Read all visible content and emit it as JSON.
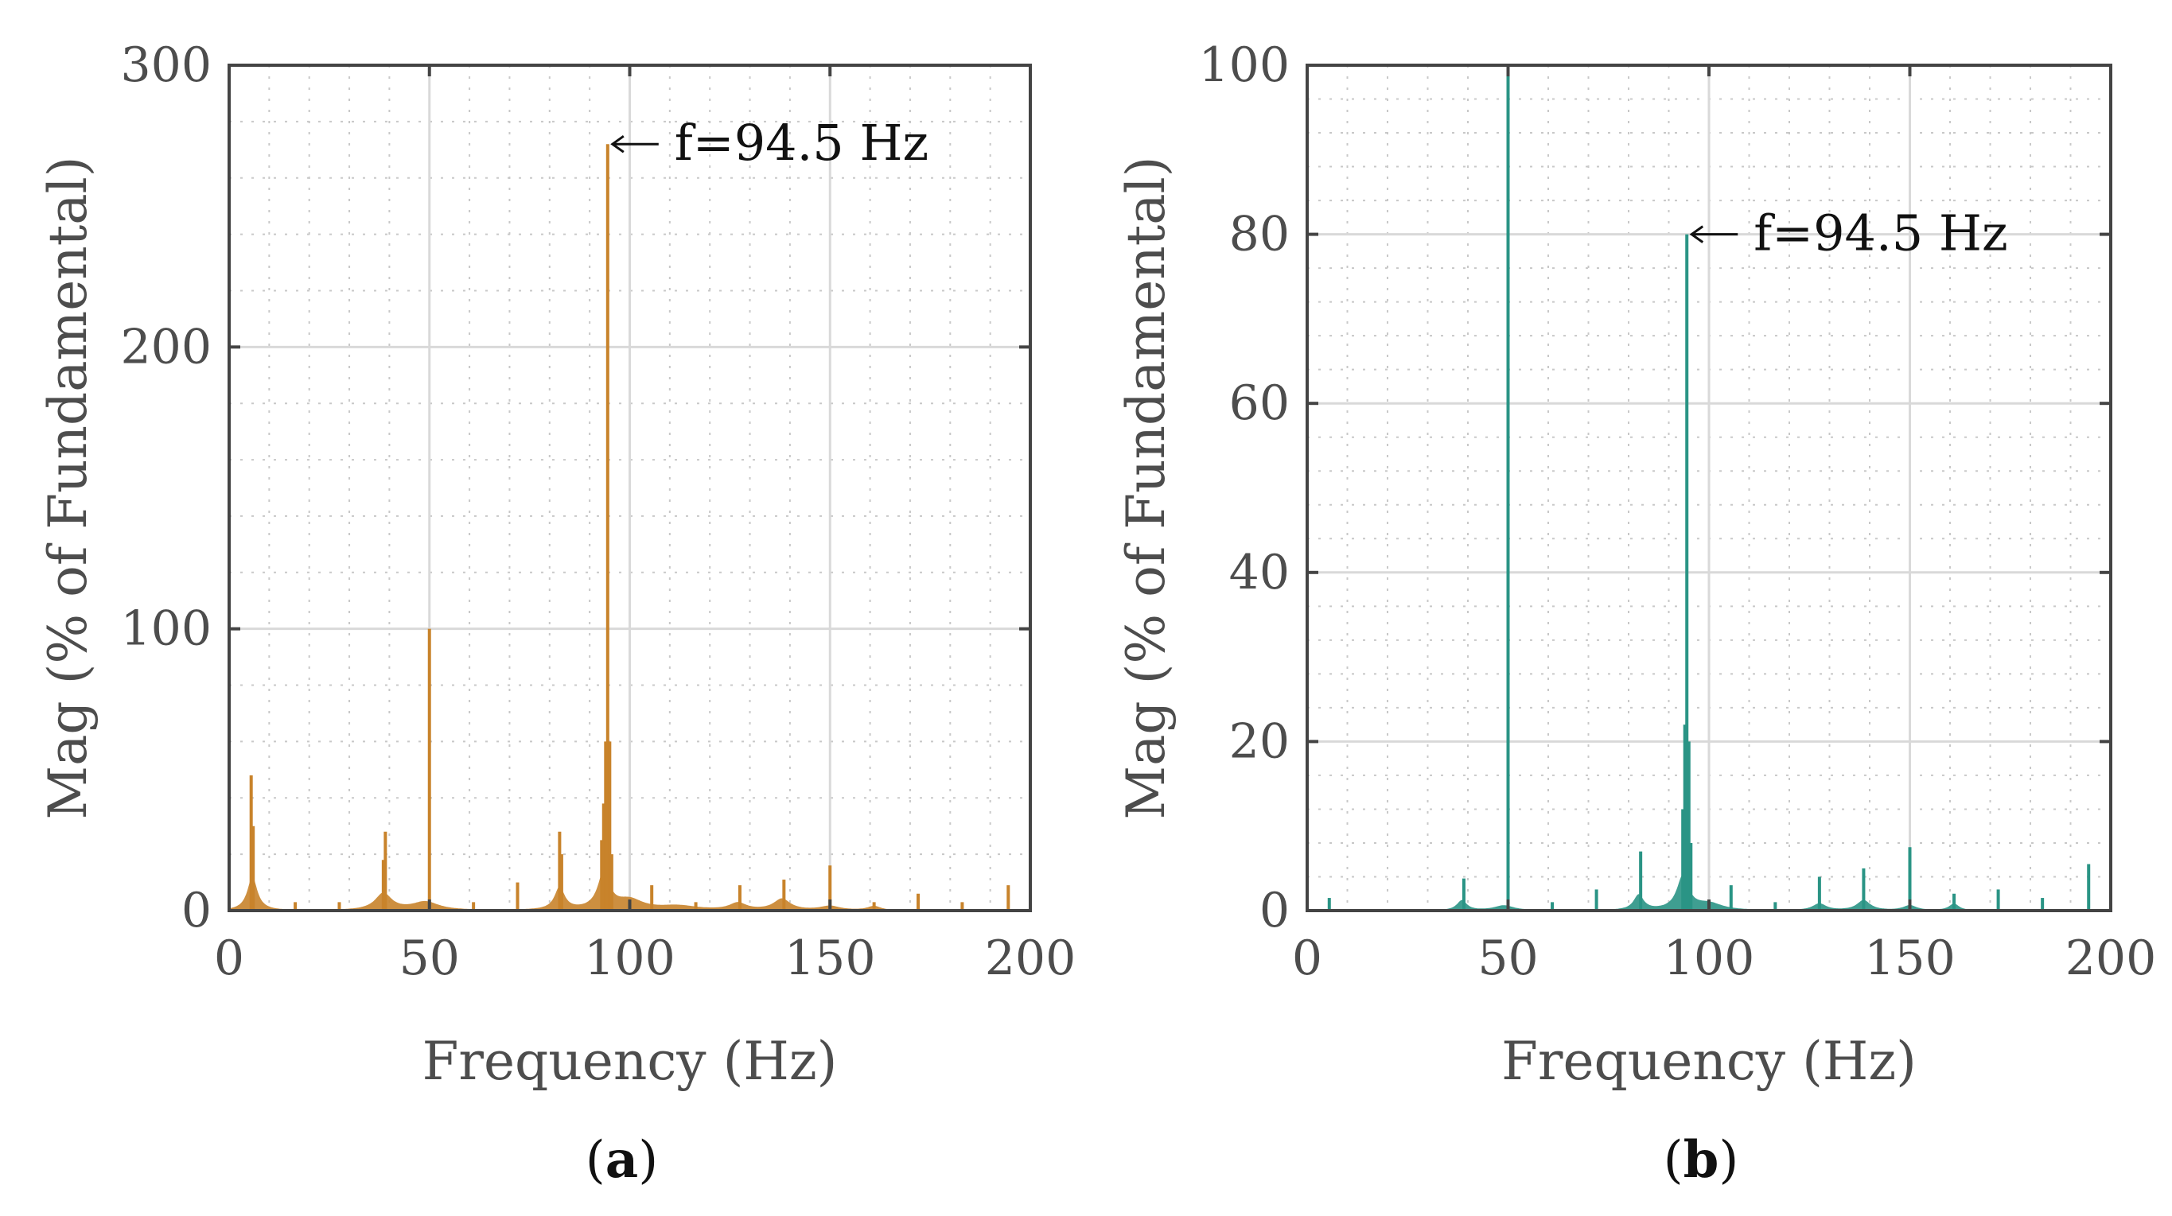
{
  "chart_data": [
    {
      "type": "bar",
      "panel_label": "a",
      "color": "#c8832b",
      "xlabel": "Frequency (Hz)",
      "ylabel": "Mag (% of Fundamental)",
      "xlim": [
        0,
        200
      ],
      "ylim": [
        0,
        300
      ],
      "xticks": [
        "0",
        "50",
        "100",
        "150",
        "200"
      ],
      "yticks": [
        "0",
        "100",
        "200",
        "300"
      ],
      "grid": true,
      "annotation": {
        "text": "f=94.5 Hz",
        "x": 94.5,
        "y": 272
      },
      "bumps": [
        {
          "x": 5.8,
          "amp": 12,
          "w": 1.5
        },
        {
          "x": 38.5,
          "amp": 6,
          "w": 2.5
        },
        {
          "x": 49,
          "amp": 3,
          "w": 4
        },
        {
          "x": 82.5,
          "amp": 8,
          "w": 1.5
        },
        {
          "x": 93.5,
          "amp": 13,
          "w": 1.8
        },
        {
          "x": 100,
          "amp": 3.5,
          "w": 4
        },
        {
          "x": 112,
          "amp": 1.5,
          "w": 6
        },
        {
          "x": 127,
          "amp": 2.5,
          "w": 2.5
        },
        {
          "x": 138,
          "amp": 4,
          "w": 2.5
        },
        {
          "x": 150,
          "amp": 1.5,
          "w": 3
        },
        {
          "x": 161,
          "amp": 1.5,
          "w": 2
        }
      ],
      "peaks": [
        {
          "x": 5.5,
          "y": 48
        },
        {
          "x": 6,
          "y": 30
        },
        {
          "x": 16.5,
          "y": 3
        },
        {
          "x": 27.5,
          "y": 3
        },
        {
          "x": 38.5,
          "y": 18
        },
        {
          "x": 39,
          "y": 28
        },
        {
          "x": 50,
          "y": 100
        },
        {
          "x": 61,
          "y": 3
        },
        {
          "x": 72,
          "y": 10
        },
        {
          "x": 82.5,
          "y": 28
        },
        {
          "x": 83,
          "y": 20
        },
        {
          "x": 93,
          "y": 25
        },
        {
          "x": 93.5,
          "y": 38
        },
        {
          "x": 94,
          "y": 60
        },
        {
          "x": 94.5,
          "y": 272
        },
        {
          "x": 95,
          "y": 60
        },
        {
          "x": 95.5,
          "y": 20
        },
        {
          "x": 105.5,
          "y": 9
        },
        {
          "x": 116.5,
          "y": 3
        },
        {
          "x": 127.5,
          "y": 9
        },
        {
          "x": 138.5,
          "y": 11
        },
        {
          "x": 150,
          "y": 16
        },
        {
          "x": 161,
          "y": 3
        },
        {
          "x": 172,
          "y": 6
        },
        {
          "x": 183,
          "y": 3
        },
        {
          "x": 194.5,
          "y": 9
        }
      ]
    },
    {
      "type": "bar",
      "panel_label": "b",
      "color": "#2a9485",
      "xlabel": "Frequency (Hz)",
      "ylabel": "Mag (% of Fundamental)",
      "xlim": [
        0,
        200
      ],
      "ylim": [
        0,
        100
      ],
      "xticks": [
        "0",
        "50",
        "100",
        "150",
        "200"
      ],
      "yticks": [
        "0",
        "20",
        "40",
        "60",
        "80",
        "100"
      ],
      "grid": true,
      "annotation": {
        "text": "f=94.5 Hz",
        "x": 94.5,
        "y": 80
      },
      "bumps": [
        {
          "x": 38.5,
          "amp": 1.2,
          "w": 1.5
        },
        {
          "x": 49,
          "amp": 0.6,
          "w": 3
        },
        {
          "x": 82.5,
          "amp": 1.8,
          "w": 1.5
        },
        {
          "x": 93.5,
          "amp": 4,
          "w": 1.8
        },
        {
          "x": 100,
          "amp": 0.8,
          "w": 4
        },
        {
          "x": 127.5,
          "amp": 0.8,
          "w": 2
        },
        {
          "x": 138.5,
          "amp": 1.2,
          "w": 2
        },
        {
          "x": 150,
          "amp": 0.6,
          "w": 2
        },
        {
          "x": 161,
          "amp": 0.8,
          "w": 1.5
        }
      ],
      "peaks": [
        {
          "x": 5.5,
          "y": 1.5
        },
        {
          "x": 39,
          "y": 3.8
        },
        {
          "x": 50,
          "y": 100
        },
        {
          "x": 61,
          "y": 1
        },
        {
          "x": 72,
          "y": 2.5
        },
        {
          "x": 83,
          "y": 7
        },
        {
          "x": 93.5,
          "y": 12
        },
        {
          "x": 94,
          "y": 22
        },
        {
          "x": 94.5,
          "y": 80
        },
        {
          "x": 95,
          "y": 20
        },
        {
          "x": 95.5,
          "y": 8
        },
        {
          "x": 105.5,
          "y": 3
        },
        {
          "x": 116.5,
          "y": 1
        },
        {
          "x": 127.5,
          "y": 4
        },
        {
          "x": 138.5,
          "y": 5
        },
        {
          "x": 150,
          "y": 7.5
        },
        {
          "x": 161,
          "y": 2
        },
        {
          "x": 172,
          "y": 2.5
        },
        {
          "x": 183,
          "y": 1.5
        },
        {
          "x": 194.5,
          "y": 5.5
        }
      ]
    }
  ]
}
